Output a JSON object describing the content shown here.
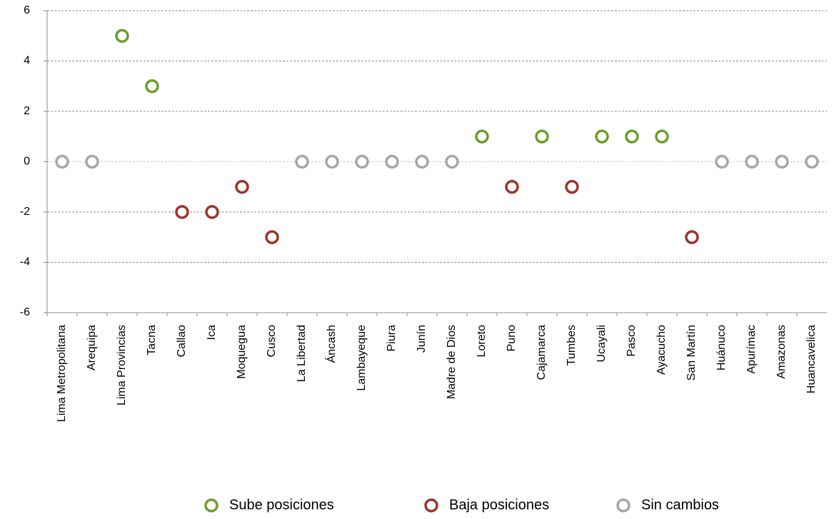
{
  "chart_data": {
    "type": "scatter",
    "categories": [
      "Lima Metropolitana",
      "Arequipa",
      "Lima Provincias",
      "Tacna",
      "Callao",
      "Ica",
      "Moquegua",
      "Cusco",
      "La Libertad",
      "Áncash",
      "Lambayeque",
      "Piura",
      "Junín",
      "Madre de Dios",
      "Loreto",
      "Puno",
      "Cajamarca",
      "Tumbes",
      "Ucayali",
      "Pasco",
      "Ayacucho",
      "San Martín",
      "Huánuco",
      "Apurímac",
      "Amazonas",
      "Huancavelica"
    ],
    "series": [
      {
        "name": "Sube posiciones",
        "color": "#6c9e2e",
        "values": [
          null,
          null,
          5,
          3,
          null,
          null,
          null,
          null,
          null,
          null,
          null,
          null,
          null,
          null,
          1,
          null,
          1,
          null,
          1,
          1,
          1,
          null,
          null,
          null,
          null,
          null
        ]
      },
      {
        "name": "Baja posiciones",
        "color": "#9b3428",
        "values": [
          null,
          null,
          null,
          null,
          -2,
          -2,
          -1,
          -3,
          null,
          null,
          null,
          null,
          null,
          null,
          null,
          -1,
          null,
          -1,
          null,
          null,
          null,
          -3,
          null,
          null,
          null,
          null
        ]
      },
      {
        "name": "Sin cambios",
        "color": "#a6a6a6",
        "values": [
          0,
          0,
          null,
          null,
          null,
          null,
          null,
          null,
          0,
          0,
          0,
          0,
          0,
          0,
          null,
          null,
          null,
          null,
          null,
          null,
          null,
          null,
          0,
          0,
          0,
          0
        ]
      }
    ],
    "ylim": [
      -6,
      6
    ],
    "yticks": [
      -6,
      -4,
      -2,
      0,
      2,
      4,
      6
    ],
    "grid": true,
    "legend": "bottom"
  }
}
